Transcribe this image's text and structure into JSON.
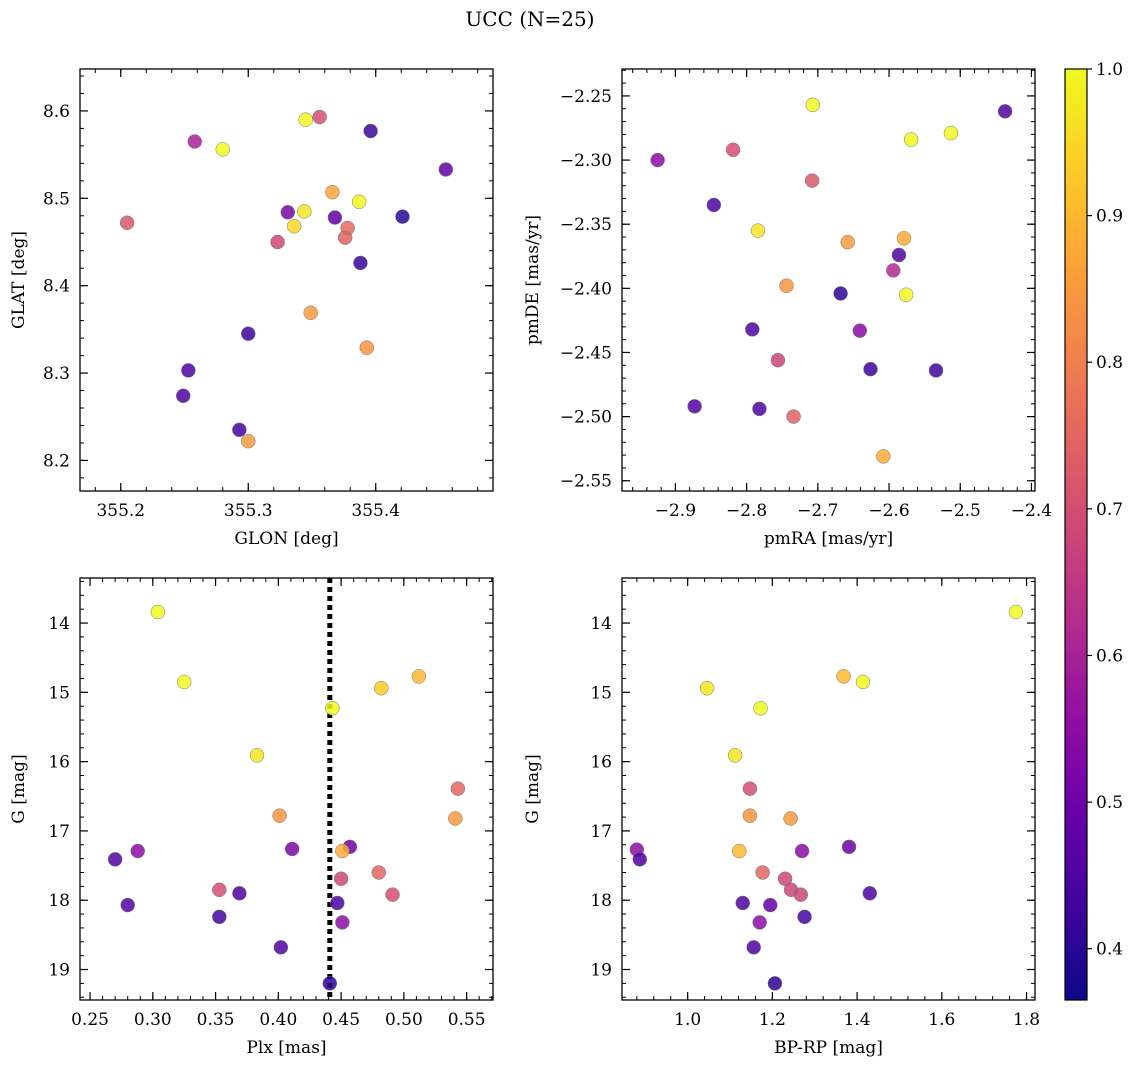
{
  "figure": {
    "title": "UCC (N=25)"
  },
  "colormap": {
    "name": "plasma",
    "range": [
      0.365,
      1.0
    ],
    "ticks": [
      0.4,
      0.5,
      0.6,
      0.7,
      0.8,
      0.9,
      1.0
    ],
    "tick_labels": [
      "0.4",
      "0.5",
      "0.6",
      "0.7",
      "0.8",
      "0.9",
      "1.0"
    ]
  },
  "chart_data": [
    {
      "type": "scatter",
      "xlabel": "GLON [deg]",
      "ylabel": "GLAT [deg]",
      "xlim": [
        355.168,
        355.492
      ],
      "ylim": [
        8.165,
        8.648
      ],
      "xticks": [
        355.2,
        355.3,
        355.4
      ],
      "xtick_labels": [
        "355.2",
        "355.3",
        "355.4"
      ],
      "yticks": [
        8.2,
        8.3,
        8.4,
        8.5,
        8.6
      ],
      "ytick_labels": [
        "8.2",
        "8.3",
        "8.4",
        "8.5",
        "8.6"
      ],
      "y_inverted": false,
      "points": [
        {
          "x": 355.205,
          "y": 8.472,
          "c": 0.72
        },
        {
          "x": 355.258,
          "y": 8.565,
          "c": 0.6
        },
        {
          "x": 355.28,
          "y": 8.556,
          "c": 1.0
        },
        {
          "x": 355.345,
          "y": 8.59,
          "c": 1.0
        },
        {
          "x": 355.356,
          "y": 8.593,
          "c": 0.7
        },
        {
          "x": 355.396,
          "y": 8.577,
          "c": 0.42
        },
        {
          "x": 355.455,
          "y": 8.533,
          "c": 0.48
        },
        {
          "x": 355.366,
          "y": 8.507,
          "c": 0.87
        },
        {
          "x": 355.387,
          "y": 8.496,
          "c": 1.0
        },
        {
          "x": 355.331,
          "y": 8.484,
          "c": 0.52
        },
        {
          "x": 355.344,
          "y": 8.485,
          "c": 0.97
        },
        {
          "x": 355.368,
          "y": 8.478,
          "c": 0.48
        },
        {
          "x": 355.421,
          "y": 8.479,
          "c": 0.4
        },
        {
          "x": 355.336,
          "y": 8.468,
          "c": 0.95
        },
        {
          "x": 355.378,
          "y": 8.466,
          "c": 0.76
        },
        {
          "x": 355.323,
          "y": 8.45,
          "c": 0.68
        },
        {
          "x": 355.376,
          "y": 8.455,
          "c": 0.74
        },
        {
          "x": 355.388,
          "y": 8.426,
          "c": 0.42
        },
        {
          "x": 355.349,
          "y": 8.369,
          "c": 0.85
        },
        {
          "x": 355.3,
          "y": 8.345,
          "c": 0.42
        },
        {
          "x": 355.393,
          "y": 8.329,
          "c": 0.84
        },
        {
          "x": 355.253,
          "y": 8.303,
          "c": 0.45
        },
        {
          "x": 355.249,
          "y": 8.274,
          "c": 0.45
        },
        {
          "x": 355.293,
          "y": 8.235,
          "c": 0.43
        },
        {
          "x": 355.3,
          "y": 8.222,
          "c": 0.85
        }
      ]
    },
    {
      "type": "scatter",
      "xlabel": "pmRA [mas/yr]",
      "ylabel": "pmDE [mas/yr]",
      "xlim": [
        -2.975,
        -2.395
      ],
      "ylim": [
        -2.558,
        -2.229
      ],
      "xticks": [
        -2.9,
        -2.8,
        -2.7,
        -2.6,
        -2.5,
        -2.4
      ],
      "xtick_labels": [
        "−2.9",
        "−2.8",
        "−2.7",
        "−2.6",
        "−2.5",
        "−2.4"
      ],
      "yticks": [
        -2.55,
        -2.5,
        -2.45,
        -2.4,
        -2.35,
        -2.3,
        -2.25
      ],
      "ytick_labels": [
        "−2.55",
        "−2.50",
        "−2.45",
        "−2.40",
        "−2.35",
        "−2.30",
        "−2.25"
      ],
      "y_inverted": false,
      "points": [
        {
          "x": -2.707,
          "y": -2.257,
          "c": 1.0
        },
        {
          "x": -2.437,
          "y": -2.262,
          "c": 0.45
        },
        {
          "x": -2.513,
          "y": -2.279,
          "c": 1.0
        },
        {
          "x": -2.569,
          "y": -2.284,
          "c": 1.0
        },
        {
          "x": -2.925,
          "y": -2.3,
          "c": 0.55
        },
        {
          "x": -2.819,
          "y": -2.292,
          "c": 0.7
        },
        {
          "x": -2.708,
          "y": -2.316,
          "c": 0.72
        },
        {
          "x": -2.846,
          "y": -2.335,
          "c": 0.45
        },
        {
          "x": -2.784,
          "y": -2.355,
          "c": 0.97
        },
        {
          "x": -2.658,
          "y": -2.364,
          "c": 0.85
        },
        {
          "x": -2.579,
          "y": -2.361,
          "c": 0.88
        },
        {
          "x": -2.586,
          "y": -2.374,
          "c": 0.45
        },
        {
          "x": -2.594,
          "y": -2.386,
          "c": 0.62
        },
        {
          "x": -2.744,
          "y": -2.398,
          "c": 0.84
        },
        {
          "x": -2.668,
          "y": -2.404,
          "c": 0.4
        },
        {
          "x": -2.576,
          "y": -2.405,
          "c": 1.0
        },
        {
          "x": -2.792,
          "y": -2.432,
          "c": 0.45
        },
        {
          "x": -2.641,
          "y": -2.433,
          "c": 0.55
        },
        {
          "x": -2.756,
          "y": -2.456,
          "c": 0.68
        },
        {
          "x": -2.626,
          "y": -2.463,
          "c": 0.42
        },
        {
          "x": -2.534,
          "y": -2.464,
          "c": 0.43
        },
        {
          "x": -2.873,
          "y": -2.492,
          "c": 0.46
        },
        {
          "x": -2.782,
          "y": -2.494,
          "c": 0.45
        },
        {
          "x": -2.734,
          "y": -2.5,
          "c": 0.74
        },
        {
          "x": -2.608,
          "y": -2.531,
          "c": 0.88
        }
      ]
    },
    {
      "type": "scatter",
      "xlabel": "Plx [mas]",
      "ylabel": "G [mag]",
      "xlim": [
        0.242,
        0.571
      ],
      "ylim": [
        19.44,
        13.35
      ],
      "xticks": [
        0.25,
        0.3,
        0.35,
        0.4,
        0.45,
        0.5,
        0.55
      ],
      "xtick_labels": [
        "0.25",
        "0.30",
        "0.35",
        "0.40",
        "0.45",
        "0.50",
        "0.55"
      ],
      "yticks": [
        14,
        15,
        16,
        17,
        18,
        19
      ],
      "ytick_labels": [
        "14",
        "15",
        "16",
        "17",
        "18",
        "19"
      ],
      "y_inverted": true,
      "vline": 0.441,
      "points": [
        {
          "x": 0.304,
          "y": 13.84,
          "c": 1.0
        },
        {
          "x": 0.325,
          "y": 14.85,
          "c": 1.0
        },
        {
          "x": 0.512,
          "y": 14.77,
          "c": 0.9
        },
        {
          "x": 0.482,
          "y": 14.94,
          "c": 0.93
        },
        {
          "x": 0.443,
          "y": 15.23,
          "c": 1.0
        },
        {
          "x": 0.383,
          "y": 15.91,
          "c": 0.97
        },
        {
          "x": 0.543,
          "y": 16.39,
          "c": 0.75
        },
        {
          "x": 0.401,
          "y": 16.78,
          "c": 0.84
        },
        {
          "x": 0.541,
          "y": 16.82,
          "c": 0.85
        },
        {
          "x": 0.27,
          "y": 17.41,
          "c": 0.45
        },
        {
          "x": 0.288,
          "y": 17.29,
          "c": 0.55
        },
        {
          "x": 0.411,
          "y": 17.26,
          "c": 0.52
        },
        {
          "x": 0.457,
          "y": 17.23,
          "c": 0.5
        },
        {
          "x": 0.451,
          "y": 17.29,
          "c": 0.88
        },
        {
          "x": 0.45,
          "y": 17.69,
          "c": 0.68
        },
        {
          "x": 0.48,
          "y": 17.6,
          "c": 0.75
        },
        {
          "x": 0.353,
          "y": 17.85,
          "c": 0.7
        },
        {
          "x": 0.369,
          "y": 17.9,
          "c": 0.45
        },
        {
          "x": 0.491,
          "y": 17.92,
          "c": 0.7
        },
        {
          "x": 0.28,
          "y": 18.07,
          "c": 0.46
        },
        {
          "x": 0.447,
          "y": 18.04,
          "c": 0.45
        },
        {
          "x": 0.353,
          "y": 18.24,
          "c": 0.43
        },
        {
          "x": 0.451,
          "y": 18.32,
          "c": 0.55
        },
        {
          "x": 0.402,
          "y": 18.68,
          "c": 0.45
        },
        {
          "x": 0.441,
          "y": 19.2,
          "c": 0.4
        }
      ]
    },
    {
      "type": "scatter",
      "xlabel": "BP-RP [mag]",
      "ylabel": "G [mag]",
      "xlim": [
        0.845,
        1.82
      ],
      "ylim": [
        19.44,
        13.35
      ],
      "xticks": [
        1.0,
        1.2,
        1.4,
        1.6,
        1.8
      ],
      "xtick_labels": [
        "1.0",
        "1.2",
        "1.4",
        "1.6",
        "1.8"
      ],
      "yticks": [
        14,
        15,
        16,
        17,
        18,
        19
      ],
      "ytick_labels": [
        "14",
        "15",
        "16",
        "17",
        "18",
        "19"
      ],
      "y_inverted": true,
      "points": [
        {
          "x": 1.775,
          "y": 13.84,
          "c": 1.0
        },
        {
          "x": 1.368,
          "y": 14.77,
          "c": 0.9
        },
        {
          "x": 1.414,
          "y": 14.85,
          "c": 1.0
        },
        {
          "x": 1.046,
          "y": 14.94,
          "c": 0.97
        },
        {
          "x": 1.172,
          "y": 15.23,
          "c": 1.0
        },
        {
          "x": 1.112,
          "y": 15.91,
          "c": 0.97
        },
        {
          "x": 1.147,
          "y": 16.39,
          "c": 0.7
        },
        {
          "x": 1.147,
          "y": 16.78,
          "c": 0.84
        },
        {
          "x": 1.243,
          "y": 16.82,
          "c": 0.85
        },
        {
          "x": 0.88,
          "y": 17.27,
          "c": 0.55
        },
        {
          "x": 0.887,
          "y": 17.41,
          "c": 0.45
        },
        {
          "x": 1.122,
          "y": 17.29,
          "c": 0.9
        },
        {
          "x": 1.27,
          "y": 17.29,
          "c": 0.55
        },
        {
          "x": 1.381,
          "y": 17.23,
          "c": 0.5
        },
        {
          "x": 1.177,
          "y": 17.6,
          "c": 0.75
        },
        {
          "x": 1.23,
          "y": 17.69,
          "c": 0.68
        },
        {
          "x": 1.244,
          "y": 17.85,
          "c": 0.68
        },
        {
          "x": 1.267,
          "y": 17.92,
          "c": 0.68
        },
        {
          "x": 1.43,
          "y": 17.9,
          "c": 0.45
        },
        {
          "x": 1.13,
          "y": 18.04,
          "c": 0.45
        },
        {
          "x": 1.195,
          "y": 18.07,
          "c": 0.48
        },
        {
          "x": 1.276,
          "y": 18.24,
          "c": 0.43
        },
        {
          "x": 1.17,
          "y": 18.32,
          "c": 0.55
        },
        {
          "x": 1.156,
          "y": 18.68,
          "c": 0.45
        },
        {
          "x": 1.206,
          "y": 19.2,
          "c": 0.4
        }
      ]
    }
  ]
}
